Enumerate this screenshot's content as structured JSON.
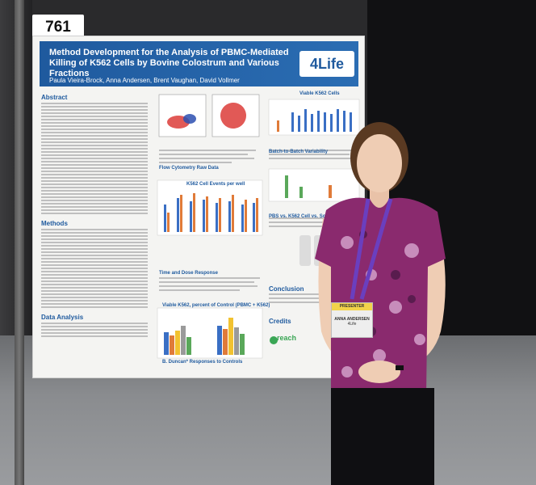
{
  "booth_number": "761",
  "poster": {
    "title": "Method Development for the Analysis of PBMC-Mediated Killing of K562 Cells by Bovine Colostrum and Various Fractions",
    "authors": "Paula Vieira-Brock, Anna Andersen, Brent Vaughan, David Vollmer",
    "logo": "4Life",
    "sections": {
      "abstract": "Abstract",
      "methods": "Methods",
      "data_analysis": "Data Analysis",
      "flow_raw_data": "Flow Cytometry Raw Data",
      "k562_cell_events": "K562 Cell Events per well",
      "time_dose": "Time and Dose Response",
      "viable_k562": "Viable K562 Cells",
      "batch_variability": "Batch-to-Batch Variability",
      "pbs_vs_k562": "PBS vs. K562 Cell vs. Solvent",
      "duncan": "B. Duncan* Responses to Controls",
      "conclusion": "Conclusion",
      "credits": "Credits",
      "viable_pct": "Viable K562, percent of Control (PBMC + K562)"
    }
  },
  "badge": {
    "ribbon": "PRESENTER",
    "name": "ANNA ANDERSEN",
    "org": "4Life"
  },
  "reach_logo": "reach",
  "colors": {
    "poster_blue": "#1f5a9e",
    "bar_blue": "#3a6fc4",
    "bar_orange": "#e07b39",
    "bar_yellow": "#f2c230",
    "bar_green": "#5aa85a"
  }
}
